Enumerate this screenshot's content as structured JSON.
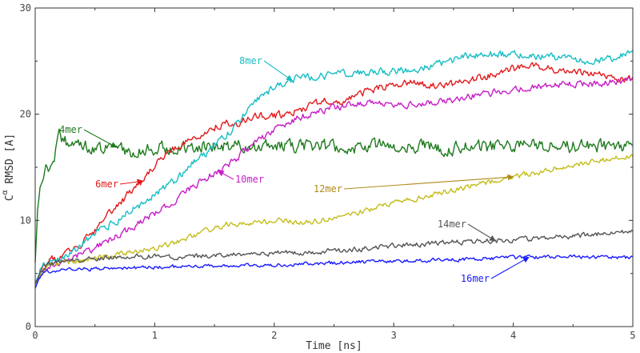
{
  "chart_data": {
    "type": "line",
    "xlabel": "Time [ns]",
    "ylabel_main": "C",
    "ylabel_sup": "α",
    "ylabel_rest": " RMSD [A]",
    "xlim": [
      0,
      5
    ],
    "ylim": [
      0,
      30
    ],
    "x_ticks": [
      "0",
      "1",
      "2",
      "3",
      "4",
      "5"
    ],
    "y_ticks": [
      "0",
      "10",
      "20",
      "30"
    ],
    "grid": false,
    "series": [
      {
        "name": "4mer",
        "color": "#1f7a1f",
        "noise": 0.55,
        "seed": 4,
        "x": [
          0,
          0.02,
          0.05,
          0.1,
          0.15,
          0.2,
          0.25,
          0.3,
          0.4,
          0.5,
          0.6,
          0.7,
          0.8,
          1.0,
          1.2,
          1.5,
          2.0,
          2.5,
          3.0,
          3.5,
          4.0,
          4.5,
          5.0
        ],
        "y": [
          6,
          11,
          13.5,
          15,
          15.5,
          17.8,
          17.6,
          16.8,
          17.2,
          17.0,
          16.8,
          16.9,
          16.5,
          16.8,
          17.0,
          16.9,
          17.1,
          16.9,
          17.0,
          16.8,
          17.0,
          16.9,
          17.1
        ]
      },
      {
        "name": "6mer",
        "color": "#e31a1c",
        "noise": 0.3,
        "seed": 6,
        "x": [
          0,
          0.05,
          0.1,
          0.2,
          0.3,
          0.4,
          0.5,
          0.6,
          0.7,
          0.8,
          0.9,
          1.0,
          1.1,
          1.2,
          1.3,
          1.4,
          1.5,
          1.6,
          1.7,
          1.8,
          2.0,
          2.2,
          2.4,
          2.6,
          2.8,
          3.0,
          3.2,
          3.4,
          3.6,
          3.8,
          4.0,
          4.2,
          4.4,
          4.6,
          4.8,
          5.0
        ],
        "y": [
          4,
          5.5,
          6.2,
          6.5,
          7.2,
          8.0,
          9.0,
          10.5,
          11.5,
          12.7,
          13.7,
          15.2,
          16.4,
          17.0,
          17.7,
          18.2,
          18.8,
          19.2,
          19.0,
          19.8,
          19.8,
          20.3,
          21.2,
          21.3,
          22.3,
          22.8,
          23.0,
          22.5,
          23.2,
          23.6,
          24.3,
          24.5,
          24.0,
          23.8,
          23.5,
          23.3
        ]
      },
      {
        "name": "8mer",
        "color": "#17bec4",
        "noise": 0.3,
        "seed": 8,
        "x": [
          0,
          0.05,
          0.1,
          0.2,
          0.3,
          0.4,
          0.5,
          0.6,
          0.7,
          0.8,
          0.9,
          1.0,
          1.1,
          1.2,
          1.3,
          1.4,
          1.5,
          1.6,
          1.7,
          1.8,
          1.9,
          2.0,
          2.2,
          2.4,
          2.6,
          2.8,
          3.0,
          3.2,
          3.4,
          3.6,
          3.8,
          4.0,
          4.2,
          4.4,
          4.6,
          4.8,
          5.0
        ],
        "y": [
          4,
          5.5,
          6.0,
          6.4,
          7.0,
          7.8,
          8.8,
          9.5,
          10.0,
          11.0,
          11.5,
          12.5,
          13.2,
          14.0,
          15.3,
          16.0,
          17.0,
          18.0,
          19.2,
          20.5,
          21.8,
          22.5,
          23.4,
          23.6,
          23.8,
          24.0,
          24.0,
          24.3,
          24.8,
          25.4,
          25.6,
          25.7,
          25.4,
          25.3,
          25.0,
          25.2,
          25.8
        ]
      },
      {
        "name": "10mer",
        "color": "#c71ec7",
        "noise": 0.28,
        "seed": 10,
        "x": [
          0,
          0.05,
          0.1,
          0.2,
          0.3,
          0.4,
          0.5,
          0.6,
          0.7,
          0.8,
          0.9,
          1.0,
          1.1,
          1.2,
          1.3,
          1.4,
          1.5,
          1.6,
          1.7,
          1.8,
          2.0,
          2.2,
          2.4,
          2.6,
          2.8,
          3.0,
          3.2,
          3.4,
          3.6,
          3.8,
          4.0,
          4.2,
          4.4,
          4.6,
          4.8,
          5.0
        ],
        "y": [
          4,
          5.0,
          5.6,
          6.0,
          6.5,
          7.0,
          7.4,
          8.0,
          8.7,
          9.3,
          10.0,
          10.6,
          11.3,
          12.2,
          13.0,
          13.8,
          14.5,
          15.0,
          16.0,
          17.0,
          18.5,
          19.6,
          20.4,
          20.8,
          21.0,
          20.8,
          21.0,
          21.2,
          21.6,
          22.0,
          22.3,
          22.7,
          22.8,
          22.8,
          23.0,
          23.2
        ]
      },
      {
        "name": "12mer",
        "color": "#c4bd1a",
        "noise": 0.22,
        "seed": 12,
        "x": [
          0,
          0.05,
          0.1,
          0.2,
          0.4,
          0.6,
          0.8,
          1.0,
          1.2,
          1.4,
          1.6,
          1.8,
          2.0,
          2.2,
          2.4,
          2.6,
          2.8,
          3.0,
          3.2,
          3.4,
          3.6,
          3.8,
          4.0,
          4.2,
          4.4,
          4.6,
          4.8,
          5.0
        ],
        "y": [
          4,
          5.0,
          5.5,
          6.0,
          6.2,
          6.6,
          7.0,
          7.4,
          8.0,
          8.9,
          9.6,
          9.8,
          10.0,
          9.8,
          10.0,
          10.5,
          11.0,
          11.6,
          12.1,
          12.6,
          13.1,
          13.6,
          14.1,
          14.5,
          15.0,
          15.4,
          15.8,
          16.1
        ]
      },
      {
        "name": "14mer",
        "color": "#555555",
        "noise": 0.2,
        "seed": 14,
        "x": [
          0,
          0.05,
          0.1,
          0.2,
          0.4,
          0.6,
          0.8,
          1.0,
          1.2,
          1.5,
          1.8,
          2.0,
          2.3,
          2.6,
          3.0,
          3.3,
          3.6,
          3.9,
          4.2,
          4.5,
          4.8,
          5.0
        ],
        "y": [
          4,
          5.2,
          5.8,
          6.1,
          6.3,
          6.5,
          6.6,
          6.6,
          6.5,
          6.7,
          6.8,
          6.9,
          7.0,
          7.2,
          7.6,
          7.8,
          8.0,
          8.1,
          8.3,
          8.5,
          8.8,
          9.0
        ]
      },
      {
        "name": "16mer",
        "color": "#1a1aff",
        "noise": 0.15,
        "seed": 16,
        "x": [
          0,
          0.03,
          0.06,
          0.1,
          0.2,
          0.4,
          0.6,
          0.8,
          1.0,
          1.5,
          2.0,
          2.5,
          3.0,
          3.5,
          4.0,
          4.5,
          5.0
        ],
        "y": [
          3.6,
          4.5,
          5.0,
          5.2,
          5.3,
          5.4,
          5.5,
          5.5,
          5.6,
          5.7,
          5.8,
          6.0,
          6.2,
          6.3,
          6.5,
          6.6,
          6.5
        ]
      }
    ],
    "annotations": [
      {
        "text": "4mer",
        "color": "#1f7a1f",
        "target_series": "4mer",
        "target_x": 0.68
      },
      {
        "text": "6mer",
        "color": "#e31a1c",
        "target_series": "6mer",
        "target_x": 0.9
      },
      {
        "text": "8mer",
        "color": "#17bec4",
        "target_series": "8mer",
        "target_x": 2.15
      },
      {
        "text": "10mer",
        "color": "#c71ec7",
        "target_series": "10mer",
        "target_x": 1.53
      },
      {
        "text": "12mer",
        "color": "#b08a1a",
        "target_series": "12mer",
        "target_x": 4.0
      },
      {
        "text": "14mer",
        "color": "#555555",
        "target_series": "14mer",
        "target_x": 3.85
      },
      {
        "text": "16mer",
        "color": "#1a1aff",
        "target_series": "16mer",
        "target_x": 4.13
      }
    ]
  }
}
